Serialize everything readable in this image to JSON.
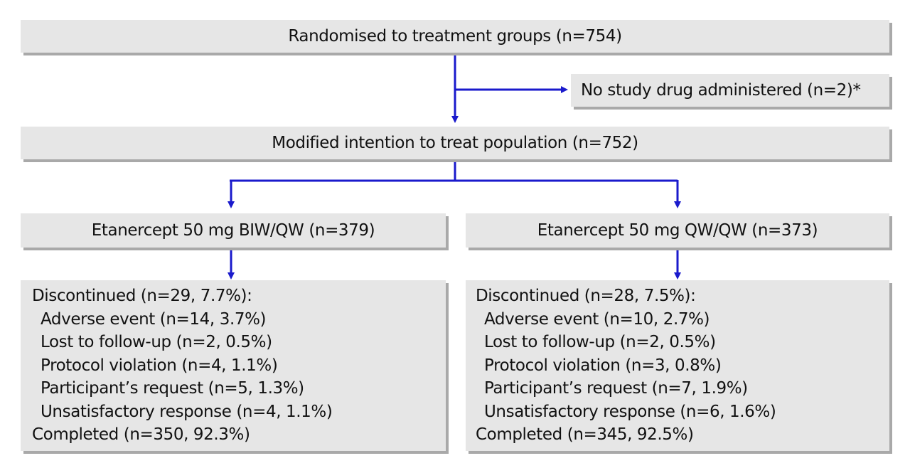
{
  "flowchart": {
    "randomised": "Randomised to treatment groups (n=754)",
    "excluded": "No study drug administered (n=2)*",
    "mitt": "Modified intention to treat population (n=752)",
    "arms": [
      {
        "title": "Etanercept 50 mg BIW/QW (n=379)",
        "discontinued": "Discontinued (n=29, 7.7%):",
        "reasons": [
          "Adverse event (n=14, 3.7%)",
          "Lost to follow-up (n=2, 0.5%)",
          "Protocol violation (n=4, 1.1%)",
          "Participant’s request (n=5, 1.3%)",
          "Unsatisfactory response (n=4, 1.1%)"
        ],
        "completed": "Completed (n=350, 92.3%)"
      },
      {
        "title": "Etanercept 50 mg QW/QW (n=373)",
        "discontinued": "Discontinued (n=28, 7.5%):",
        "reasons": [
          "Adverse event (n=10, 2.7%)",
          "Lost to follow-up (n=2, 0.5%)",
          "Protocol violation (n=3, 0.8%)",
          "Participant’s request (n=7, 1.9%)",
          "Unsatisfactory response (n=6, 1.6%)"
        ],
        "completed": "Completed (n=345, 92.5%)"
      }
    ],
    "colors": {
      "arrow": "#1a1acc",
      "box_fill": "#e6e6e6",
      "box_shadow": "#a9a9a9"
    }
  }
}
